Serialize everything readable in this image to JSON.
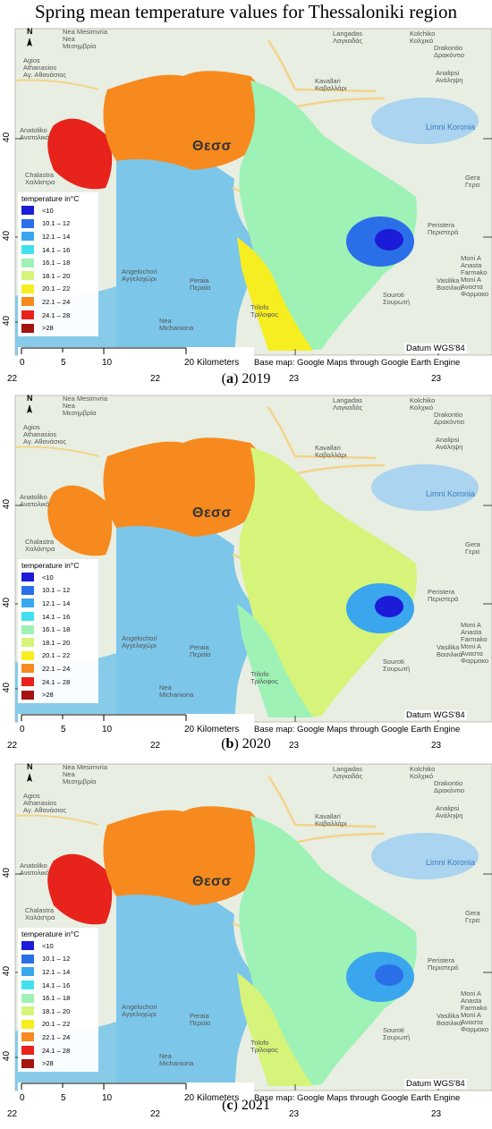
{
  "title": "Spring mean temperature values for Thessaloniki region",
  "legend": {
    "title": "temperature in°C",
    "classes": [
      {
        "label": "<10",
        "color": "#1b1bd8"
      },
      {
        "label": "10.1 – 12",
        "color": "#2b6fe8"
      },
      {
        "label": "12.1 – 14",
        "color": "#3aa6ee"
      },
      {
        "label": "14.1 – 16",
        "color": "#42e0ee"
      },
      {
        "label": "16.1 – 18",
        "color": "#9ef2b6"
      },
      {
        "label": "18.1 – 20",
        "color": "#d6f47a"
      },
      {
        "label": "20.1 – 22",
        "color": "#f7ee22"
      },
      {
        "label": "22.1 – 24",
        "color": "#f68a1e"
      },
      {
        "label": "24.1 – 28",
        "color": "#e8231c"
      },
      {
        "label": ">28",
        "color": "#a3130f"
      }
    ]
  },
  "scalebar": {
    "ticks": [
      "0",
      "5",
      "10",
      "20"
    ],
    "units": "Kilometers"
  },
  "datum": "Datum WGS'84",
  "basemap_credit": "Base map: Google Maps through Google Earth Engine",
  "coords": {
    "lon": [
      "22",
      "22",
      "23",
      "23"
    ],
    "lat": [
      "40",
      "40",
      "40"
    ]
  },
  "north_label": "N",
  "places": {
    "nea_mesimvria": "Nea Mesimvria\nNea\nΜεσημβρία",
    "agios": "Agios\nAthanasios\nΑγ. Αθανάσιος",
    "anatoliko": "Anatoliko\nΑνατολικό",
    "chalastra": "Chalastra\nΧαλάστρα",
    "thessaloniki": "Θεσσ",
    "langadas": "Langadas\nΛαγκαδάς",
    "kolchiko": "Kolchiko\nΚολχικό",
    "drakontio": "Drakontio\nΔρακόντιο",
    "analipsi": "Analipsi\nΑνάληψη",
    "kavallari": "Kavallari\nΚαβαλλάρι",
    "limni": "Limni Koronia",
    "gerakarou": "Gera\nΓερα",
    "peristera": "Peristera\nΠεριστερά",
    "angelochori": "Angelochori\nΑγγελοχώρι",
    "peraia": "Peraia\nΠεραία",
    "nea_michaniona": "Nea\nMichaniona",
    "trilofo": "Trilofo\nΤρίλοφος",
    "souroti": "Souroti\nΣουρωτή",
    "vasilika": "Vasilika\nΒασιλικά",
    "moni": "Moni A\nAnasta\nFarmako\nMoni A\nΑναστα\nΦαρμακο"
  },
  "panels": [
    {
      "label": "a",
      "year": "2019"
    },
    {
      "label": "b",
      "year": "2020"
    },
    {
      "label": "c",
      "year": "2021"
    }
  ]
}
